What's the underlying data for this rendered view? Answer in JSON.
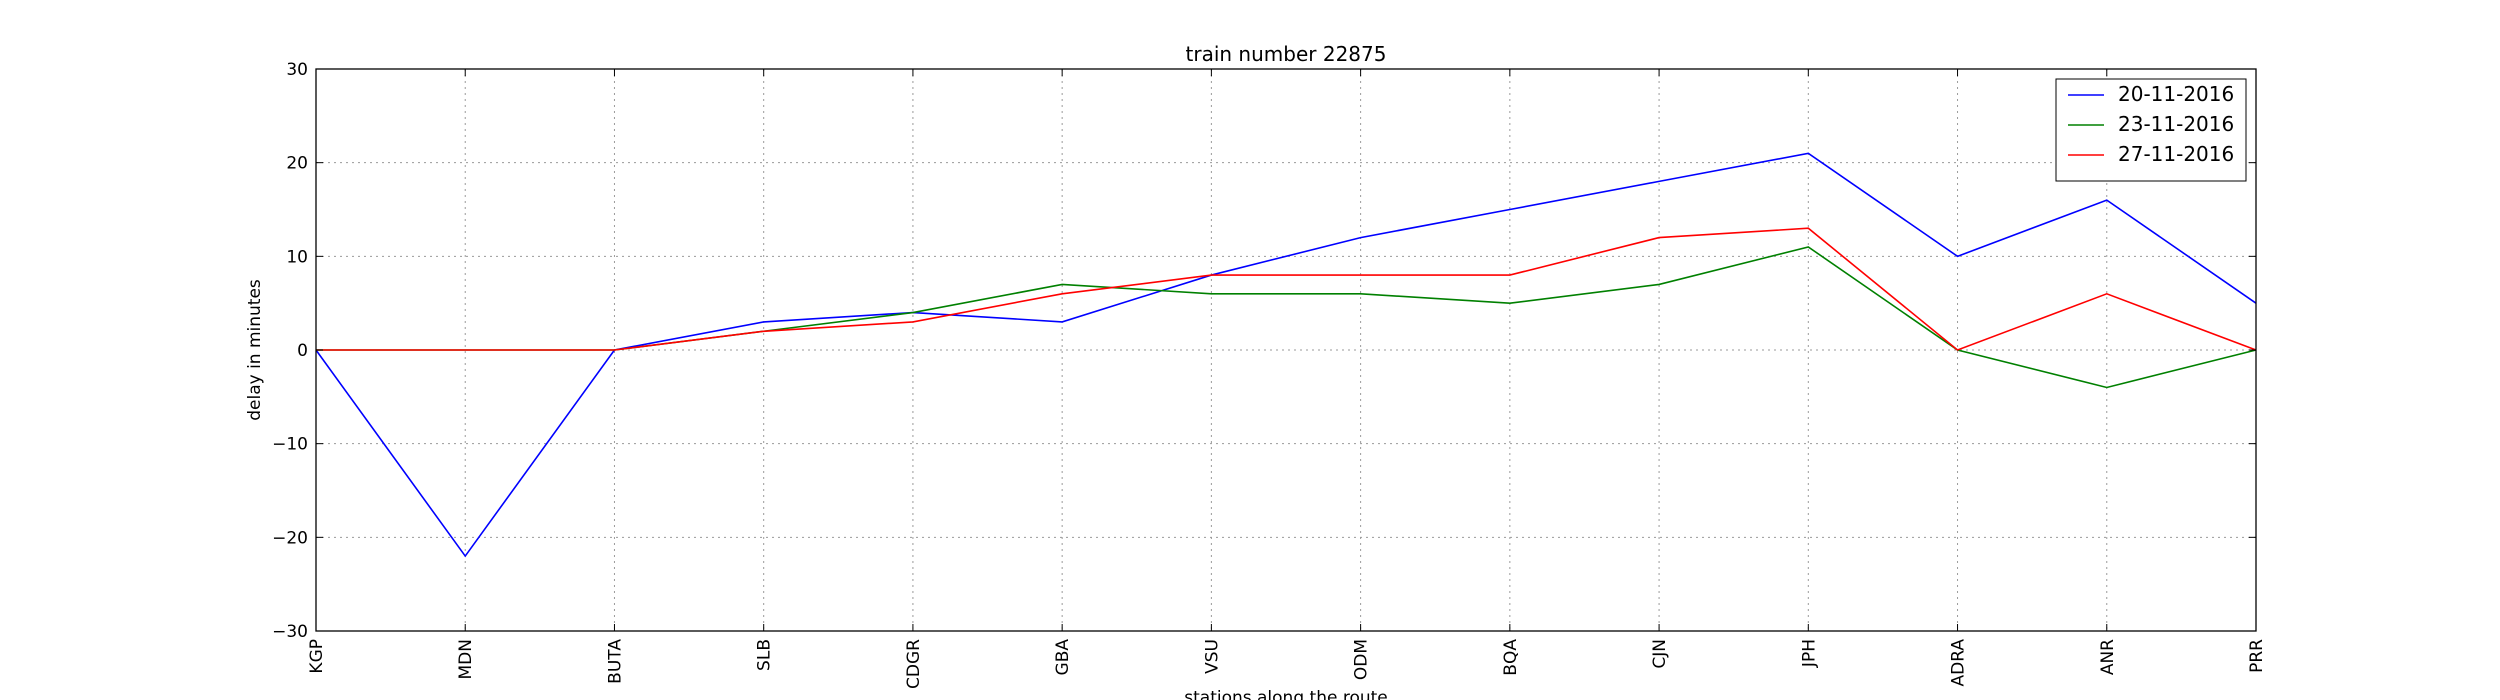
{
  "chart_data": {
    "type": "line",
    "title": "train number 22875",
    "xlabel": "stations along the route",
    "ylabel": "delay in minutes",
    "categories": [
      "KGP",
      "MDN",
      "BUTA",
      "SLB",
      "CDGR",
      "GBA",
      "VSU",
      "ODM",
      "BQA",
      "CJN",
      "JPH",
      "ADRA",
      "ANR",
      "PRR"
    ],
    "ylim": [
      -30,
      30
    ],
    "yticks": [
      -30,
      -20,
      -10,
      0,
      10,
      20,
      30
    ],
    "ytick_labels": [
      "−30",
      "−20",
      "−10",
      "0",
      "10",
      "20",
      "30"
    ],
    "grid": true,
    "legend_position": "top-right",
    "series": [
      {
        "name": "20-11-2016",
        "color": "#0000ff",
        "values": [
          0,
          -22,
          0,
          3,
          4,
          3,
          8,
          12,
          15,
          18,
          21,
          10,
          16,
          5
        ]
      },
      {
        "name": "23-11-2016",
        "color": "#008000",
        "values": [
          0,
          0,
          0,
          2,
          4,
          7,
          6,
          6,
          5,
          7,
          11,
          0,
          -4,
          0
        ]
      },
      {
        "name": "27-11-2016",
        "color": "#ff0000",
        "values": [
          0,
          0,
          0,
          2,
          3,
          6,
          8,
          8,
          8,
          12,
          13,
          0,
          6,
          0
        ]
      }
    ]
  }
}
